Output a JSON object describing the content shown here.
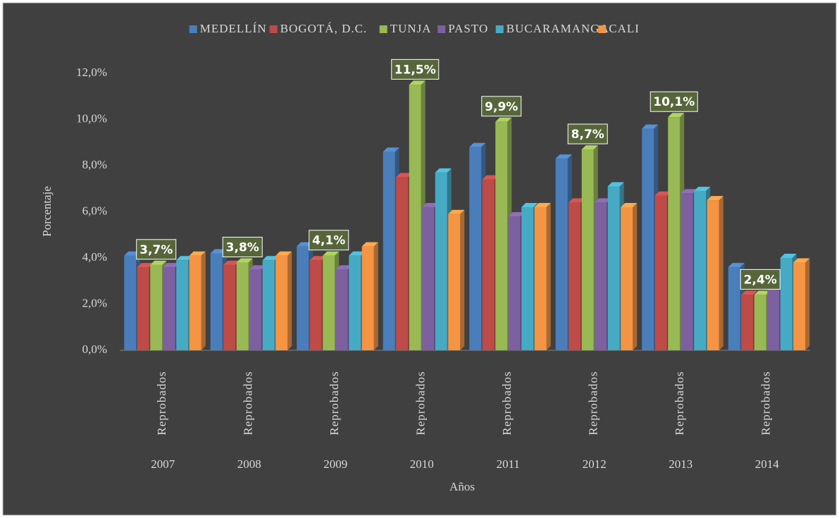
{
  "chart_data": {
    "type": "bar3d",
    "x_label": "Años",
    "y_label": "Porcentaje",
    "categories": [
      "2007",
      "2008",
      "2009",
      "2010",
      "2011",
      "2012",
      "2013",
      "2014"
    ],
    "category_sublabels": [
      "Reprobados",
      "Reprobados",
      "Reprobados",
      "Reprobados",
      "Reprobados",
      "Reprobados",
      "Reprobados",
      "Reprobados"
    ],
    "series": [
      {
        "name": "MEDELLÍN",
        "color": "#4a7ebb",
        "values": [
          4.1,
          4.2,
          4.5,
          8.6,
          8.8,
          8.3,
          9.6,
          3.6
        ]
      },
      {
        "name": "BOGOTÁ, D.C.",
        "color": "#be4b48",
        "values": [
          3.6,
          3.7,
          3.9,
          7.5,
          7.4,
          6.4,
          6.7,
          2.4
        ]
      },
      {
        "name": "TUNJA",
        "color": "#98b954",
        "values": [
          3.7,
          3.8,
          4.1,
          11.5,
          9.9,
          8.7,
          10.1,
          2.4
        ],
        "value_labels": [
          "3,7%",
          "3,8%",
          "4,1%",
          "11,5%",
          "9,9%",
          "8,7%",
          "10,1%",
          "2,4%"
        ]
      },
      {
        "name": "PASTO",
        "color": "#7d60a0",
        "values": [
          3.6,
          3.5,
          3.5,
          6.2,
          5.8,
          6.4,
          6.8,
          3.0
        ]
      },
      {
        "name": "BUCARAMANGA",
        "color": "#46aac5",
        "values": [
          3.9,
          3.9,
          4.1,
          7.7,
          6.2,
          7.1,
          6.9,
          4.0
        ]
      },
      {
        "name": "CALI",
        "color": "#f59443",
        "values": [
          4.1,
          4.1,
          4.5,
          5.9,
          6.2,
          6.2,
          6.5,
          3.8
        ]
      }
    ],
    "ylim": [
      0,
      12
    ],
    "yticks": [
      {
        "value": 0,
        "label": "0,0%"
      },
      {
        "value": 2,
        "label": "2,0%"
      },
      {
        "value": 4,
        "label": "4,0%"
      },
      {
        "value": 6,
        "label": "6,0%"
      },
      {
        "value": 8,
        "label": "8,0%"
      },
      {
        "value": 10,
        "label": "10,0%"
      },
      {
        "value": 12,
        "label": "12,0%"
      }
    ],
    "grid": false,
    "legend": "top"
  }
}
